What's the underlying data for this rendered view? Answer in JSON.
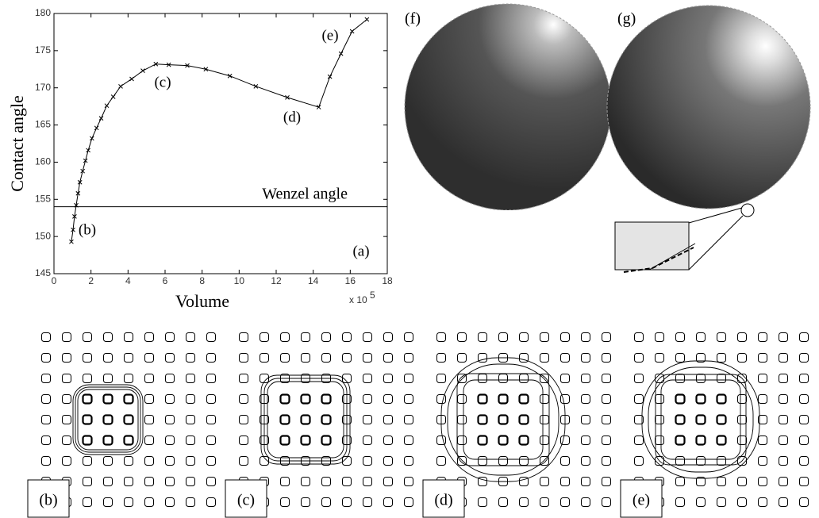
{
  "chart_data": {
    "type": "line",
    "xlabel": "Volume",
    "ylabel": "Contact angle",
    "x_scale_label": "x 10",
    "x_scale_exponent": "5",
    "x": [
      0.94,
      1.03,
      1.11,
      1.2,
      1.3,
      1.4,
      1.55,
      1.7,
      1.85,
      2.05,
      2.3,
      2.55,
      2.85,
      3.2,
      3.6,
      4.2,
      4.8,
      5.5,
      6.2,
      7.2,
      8.2,
      9.5,
      10.9,
      12.6,
      14.3,
      14.9,
      15.5,
      16.1,
      16.9
    ],
    "series": [
      {
        "color": "#000000",
        "values": [
          149.3,
          150.9,
          152.7,
          154.2,
          155.8,
          157.3,
          158.8,
          160.2,
          161.6,
          163.2,
          164.6,
          165.9,
          167.6,
          168.8,
          170.2,
          171.2,
          172.3,
          173.2,
          173.1,
          173.0,
          172.5,
          171.6,
          170.2,
          168.7,
          167.4,
          171.5,
          174.6,
          177.6,
          179.2
        ]
      }
    ],
    "reference_line": {
      "value": 154,
      "label": "Wenzel angle"
    },
    "annotations": [
      "(a)",
      "(b)",
      "(c)",
      "(d)",
      "(e)"
    ],
    "xlim": [
      0,
      18
    ],
    "ylim": [
      145,
      180
    ],
    "xticks": [
      0,
      2,
      4,
      6,
      8,
      10,
      12,
      14,
      16,
      18
    ],
    "yticks": [
      145,
      150,
      155,
      160,
      165,
      170,
      175,
      180
    ]
  },
  "sphere_labels": [
    "(f)",
    "(g)"
  ],
  "pattern_labels": [
    "(b)",
    "(c)",
    "(d)",
    "(e)"
  ]
}
